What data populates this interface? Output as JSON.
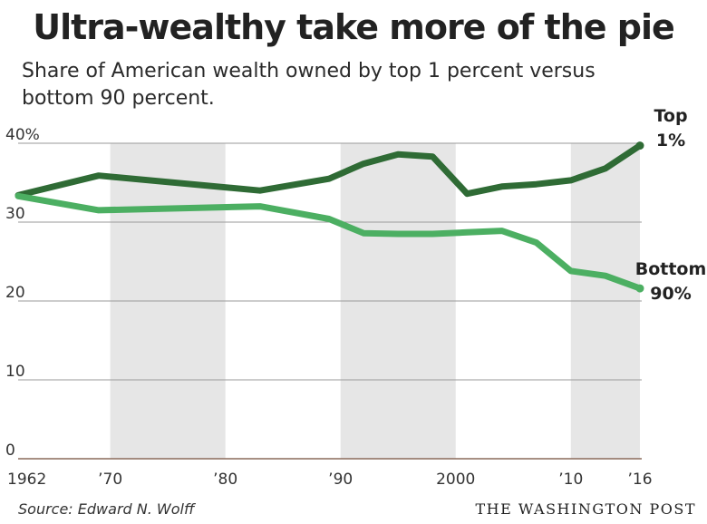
{
  "title": "Ultra-wealthy take more of the pie",
  "subtitle": "Share of American wealth owned by top 1 percent versus bottom 90 percent.",
  "source": "Source: Edward N. Wolff",
  "credit": "THE WASHINGTON POST",
  "colors": {
    "top": "#2f6b35",
    "bottom": "#4caf62",
    "band": "#e6e6e6",
    "grid": "#9a9a9a"
  },
  "chart_data": {
    "type": "line",
    "xlim": [
      1962,
      2016
    ],
    "ylim": [
      0,
      40
    ],
    "y_ticks": [
      {
        "value": 40,
        "label": "40%"
      },
      {
        "value": 30,
        "label": "30"
      },
      {
        "value": 20,
        "label": "20"
      },
      {
        "value": 10,
        "label": "10"
      },
      {
        "value": 0,
        "label": "0"
      }
    ],
    "x_ticks": [
      {
        "value": 1962,
        "label": "1962"
      },
      {
        "value": 1970,
        "label": "’70"
      },
      {
        "value": 1980,
        "label": "’80"
      },
      {
        "value": 1990,
        "label": "’90"
      },
      {
        "value": 2000,
        "label": "2000"
      },
      {
        "value": 2010,
        "label": "’10"
      },
      {
        "value": 2016,
        "label": "’16"
      }
    ],
    "shaded_decades": [
      [
        1970,
        1980
      ],
      [
        1990,
        2000
      ],
      [
        2010,
        2016
      ]
    ],
    "grid": true,
    "series": [
      {
        "name": "Top 1%",
        "label_lines": [
          "Top",
          "1%"
        ],
        "x": [
          1962,
          1969,
          1983,
          1989,
          1992,
          1995,
          1998,
          2001,
          2004,
          2007,
          2010,
          2013,
          2016
        ],
        "y": [
          33.4,
          35.9,
          34.0,
          35.5,
          37.4,
          38.6,
          38.3,
          33.6,
          34.5,
          34.8,
          35.3,
          36.8,
          39.7
        ]
      },
      {
        "name": "Bottom 90%",
        "label_lines": [
          "Bottom",
          "90%"
        ],
        "x": [
          1962,
          1969,
          1983,
          1989,
          1992,
          1995,
          1998,
          2001,
          2004,
          2007,
          2010,
          2013,
          2016
        ],
        "y": [
          33.3,
          31.5,
          32.0,
          30.4,
          28.6,
          28.5,
          28.5,
          28.7,
          28.9,
          27.4,
          23.8,
          23.2,
          21.6
        ]
      }
    ]
  }
}
